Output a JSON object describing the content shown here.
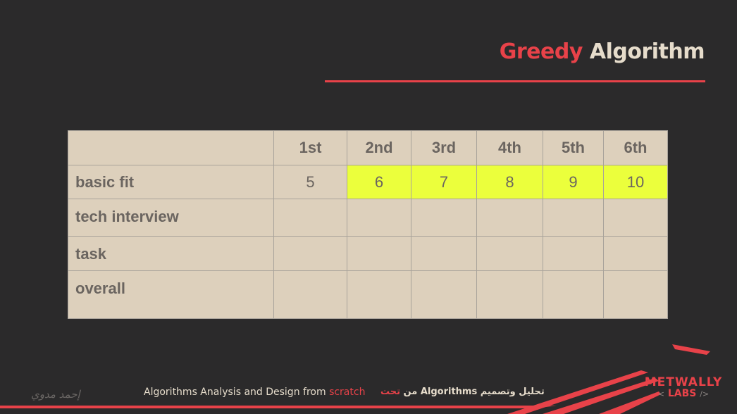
{
  "title": {
    "accent": "Greedy",
    "rest": "Algorithm"
  },
  "table": {
    "headers": [
      "",
      "1st",
      "2nd",
      "3rd",
      "4th",
      "5th",
      "6th"
    ],
    "rows": [
      {
        "label": "basic fit",
        "cells": [
          "5",
          "6",
          "7",
          "8",
          "9",
          "10"
        ]
      },
      {
        "label": "tech interview",
        "cells": [
          "",
          "",
          "",
          "",
          "",
          ""
        ]
      },
      {
        "label": "task",
        "cells": [
          "",
          "",
          "",
          "",
          "",
          ""
        ]
      },
      {
        "label": "overall",
        "cells": [
          "",
          "",
          "",
          "",
          "",
          ""
        ]
      }
    ]
  },
  "footer": {
    "signature": "إحمد مدوي",
    "course_prefix": "Algorithms Analysis and Design from",
    "course_accent": "scratch",
    "arabic_main": "تحليل وتصميم Algorithms من",
    "arabic_accent": "تحت"
  },
  "logo": {
    "line1": "METWALLY",
    "line2": "LABS",
    "open": "<",
    "close": "/>"
  },
  "colors": {
    "accent": "#e84249",
    "background": "#2b2a2b",
    "table_bg": "#ddd0bc",
    "highlight": "#ebff3c",
    "text_light": "#e6dccb"
  }
}
